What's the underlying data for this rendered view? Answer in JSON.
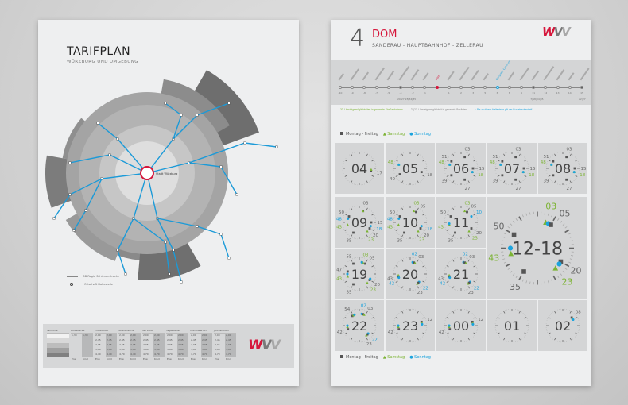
{
  "left_poster": {
    "title": "TARIFPLAN",
    "subtitle": "WÜRZBURG UND UMGEBUNG",
    "center_station": "Stadt Würzburg",
    "legend": [
      {
        "icon": "rail-line",
        "label": "DB-Regio Schienenstrecke"
      },
      {
        "icon": "stop-circle",
        "label": "Ortschaft Haltestelle"
      }
    ],
    "table": {
      "headers": [
        "Tarifzone",
        "Kurzstrecke",
        "Einzelticket",
        "Streifenkarte",
        "der Karte",
        "Tageskarten",
        "Monatskarten",
        "Jahreskarten"
      ],
      "short_fare": "1,30",
      "fares": [
        "2,00",
        "2,45",
        "2,95",
        "3,90",
        "4,70"
      ],
      "footer": [
        "Erw.",
        "Kind"
      ]
    },
    "logo": "WVV"
  },
  "right_poster": {
    "line_number": "4",
    "line_name": "DOM",
    "route": "SANDERAU - HAUPTBAHNHOF - ZELLERAU",
    "logo": "WVV",
    "stops": [
      {
        "num": "-10"
      },
      {
        "num": "-9"
      },
      {
        "num": "-8"
      },
      {
        "num": "-7"
      },
      {
        "num": "-5"
      },
      {
        "num": "-4",
        "transfer": "20|27|28|34|35"
      },
      {
        "num": "-2"
      },
      {
        "num": "-1"
      },
      {
        "num": "",
        "name": "Dom",
        "current": true
      },
      {
        "num": "1"
      },
      {
        "num": "2"
      },
      {
        "num": "3"
      },
      {
        "num": "5"
      },
      {
        "num": "6",
        "name": "Congress Centrum",
        "short_limit": true
      },
      {
        "num": "8"
      },
      {
        "num": "9"
      },
      {
        "num": "11",
        "transfer": "7|18|34|35"
      },
      {
        "num": "12"
      },
      {
        "num": "13"
      },
      {
        "num": "14"
      },
      {
        "num": "15",
        "transfer": "22|27"
      }
    ],
    "info": [
      {
        "code": "20",
        "text": "Umsteigemöglichkeiten in genannte Straßenbahnen"
      },
      {
        "code": "22|27",
        "text": "Umsteigemöglichkeit in genannte Buslinien"
      },
      {
        "code": "",
        "text": "Bis zu dieser Haltestelle gilt der Kurzstreckentarif"
      }
    ],
    "day_legend": {
      "weekday": "Montag - Freitag",
      "saturday": "Samstag",
      "sunday": "Sonntag"
    },
    "colors": {
      "accent": "#d6163b",
      "weekday": "#555555",
      "saturday": "#7cb334",
      "sunday": "#1ba3dd"
    },
    "hours": [
      {
        "hour": "04",
        "marks": [
          {
            "m": "17",
            "d": "wd",
            "l": true
          },
          {
            "m": "16",
            "d": "sat"
          }
        ]
      },
      {
        "hour": "05",
        "marks": [
          {
            "m": "48",
            "d": "sat",
            "l": true
          },
          {
            "m": "48",
            "d": "sun"
          },
          {
            "m": "18",
            "d": "wd",
            "l": true
          },
          {
            "m": "40",
            "d": "wd",
            "l": true
          }
        ]
      },
      {
        "hour": "06",
        "marks": [
          {
            "m": "03",
            "d": "wd",
            "l": true
          },
          {
            "m": "51",
            "d": "wd",
            "l": true
          },
          {
            "m": "48",
            "d": "sat",
            "l": true
          },
          {
            "m": "48",
            "d": "sun"
          },
          {
            "m": "15",
            "d": "wd",
            "l": true
          },
          {
            "m": "18",
            "d": "sat",
            "l": true
          },
          {
            "m": "18",
            "d": "sun"
          },
          {
            "m": "39",
            "d": "wd",
            "l": true
          },
          {
            "m": "27",
            "d": "wd",
            "l": true
          }
        ]
      },
      {
        "hour": "07",
        "marks": [
          {
            "m": "03",
            "d": "wd",
            "l": true
          },
          {
            "m": "51",
            "d": "wd",
            "l": true
          },
          {
            "m": "48",
            "d": "sat",
            "l": true
          },
          {
            "m": "48",
            "d": "sun"
          },
          {
            "m": "15",
            "d": "wd",
            "l": true
          },
          {
            "m": "18",
            "d": "sat",
            "l": true
          },
          {
            "m": "18",
            "d": "sun"
          },
          {
            "m": "39",
            "d": "wd",
            "l": true
          },
          {
            "m": "27",
            "d": "wd",
            "l": true
          }
        ]
      },
      {
        "hour": "08",
        "marks": [
          {
            "m": "03",
            "d": "wd",
            "l": true
          },
          {
            "m": "51",
            "d": "wd",
            "l": true
          },
          {
            "m": "48",
            "d": "sat",
            "l": true
          },
          {
            "m": "48",
            "d": "sun"
          },
          {
            "m": "15",
            "d": "wd",
            "l": true
          },
          {
            "m": "18",
            "d": "sat",
            "l": true
          },
          {
            "m": "18",
            "d": "sun"
          },
          {
            "m": "39",
            "d": "wd",
            "l": true
          },
          {
            "m": "27",
            "d": "wd",
            "l": true
          }
        ]
      },
      {
        "hour": "09",
        "marks": [
          {
            "m": "03",
            "d": "wd",
            "l": true
          },
          {
            "m": "03",
            "d": "sat"
          },
          {
            "m": "50",
            "d": "wd",
            "l": true
          },
          {
            "m": "48",
            "d": "sun",
            "l": true
          },
          {
            "m": "43",
            "d": "sat",
            "l": true
          },
          {
            "m": "15",
            "d": "wd",
            "l": true
          },
          {
            "m": "18",
            "d": "sun",
            "l": true
          },
          {
            "m": "20",
            "d": "wd",
            "l": true
          },
          {
            "m": "23",
            "d": "sat",
            "l": true
          },
          {
            "m": "35",
            "d": "wd",
            "l": true
          }
        ]
      },
      {
        "hour": "10",
        "marks": [
          {
            "m": "03",
            "d": "sat",
            "l": true
          },
          {
            "m": "05",
            "d": "wd",
            "l": true
          },
          {
            "m": "50",
            "d": "wd",
            "l": true
          },
          {
            "m": "48",
            "d": "sun",
            "l": true
          },
          {
            "m": "43",
            "d": "sat",
            "l": true
          },
          {
            "m": "18",
            "d": "sun",
            "l": true
          },
          {
            "m": "20",
            "d": "wd",
            "l": true
          },
          {
            "m": "23",
            "d": "sat",
            "l": true
          },
          {
            "m": "35",
            "d": "wd",
            "l": true
          }
        ]
      },
      {
        "hour": "11",
        "marks": [
          {
            "m": "03",
            "d": "sat",
            "l": true
          },
          {
            "m": "05",
            "d": "wd",
            "l": true
          },
          {
            "m": "50",
            "d": "wd",
            "l": true
          },
          {
            "m": "10",
            "d": "sun",
            "l": true
          },
          {
            "m": "43",
            "d": "sat",
            "l": true
          },
          {
            "m": "44",
            "d": "sun"
          },
          {
            "m": "20",
            "d": "wd",
            "l": true
          },
          {
            "m": "23",
            "d": "sat",
            "l": true
          },
          {
            "m": "35",
            "d": "wd",
            "l": true
          }
        ]
      },
      {
        "hour": "12-18",
        "big": true,
        "marks": [
          {
            "m": "03",
            "d": "sat",
            "l": true
          },
          {
            "m": "04",
            "d": "sun"
          },
          {
            "m": "05",
            "d": "wd",
            "l": true
          },
          {
            "m": "50",
            "d": "wd",
            "l": true
          },
          {
            "m": "43",
            "d": "sat",
            "l": true
          },
          {
            "m": "45",
            "d": "sun"
          },
          {
            "m": "20",
            "d": "wd",
            "l": true
          },
          {
            "m": "23",
            "d": "sat",
            "l": true
          },
          {
            "m": "21",
            "d": "sun"
          },
          {
            "m": "35",
            "d": "wd",
            "l": true
          }
        ]
      },
      {
        "hour": "19",
        "marks": [
          {
            "m": "55",
            "d": "wd",
            "l": true
          },
          {
            "m": "03",
            "d": "sat",
            "l": true
          },
          {
            "m": "05",
            "d": "wd",
            "l": true
          },
          {
            "m": "02",
            "d": "sun"
          },
          {
            "m": "47",
            "d": "wd",
            "l": true
          },
          {
            "m": "43",
            "d": "sat",
            "l": true
          },
          {
            "m": "45",
            "d": "sun"
          },
          {
            "m": "20",
            "d": "wd",
            "l": true
          },
          {
            "m": "19",
            "d": "sun"
          },
          {
            "m": "23",
            "d": "sat",
            "l": true
          },
          {
            "m": "35",
            "d": "wd",
            "l": true
          }
        ]
      },
      {
        "hour": "20",
        "marks": [
          {
            "m": "02",
            "d": "sun",
            "l": true
          },
          {
            "m": "03",
            "d": "wd",
            "l": true
          },
          {
            "m": "04",
            "d": "sat"
          },
          {
            "m": "43",
            "d": "wd",
            "l": true
          },
          {
            "m": "44",
            "d": "sat"
          },
          {
            "m": "42",
            "d": "sun",
            "l": true
          },
          {
            "m": "22",
            "d": "sun",
            "l": true
          },
          {
            "m": "23",
            "d": "wd",
            "l": true
          },
          {
            "m": "24",
            "d": "sat"
          }
        ]
      },
      {
        "hour": "21",
        "marks": [
          {
            "m": "02",
            "d": "sun",
            "l": true
          },
          {
            "m": "03",
            "d": "wd",
            "l": true
          },
          {
            "m": "04",
            "d": "sat"
          },
          {
            "m": "43",
            "d": "wd",
            "l": true
          },
          {
            "m": "44",
            "d": "sat"
          },
          {
            "m": "42",
            "d": "sun",
            "l": true
          },
          {
            "m": "22",
            "d": "sun",
            "l": true
          },
          {
            "m": "23",
            "d": "wd",
            "l": true
          },
          {
            "m": "24",
            "d": "sat"
          }
        ]
      },
      {
        "hour": "22",
        "marks": [
          {
            "m": "54",
            "d": "wd",
            "l": true
          },
          {
            "m": "55",
            "d": "sat"
          },
          {
            "m": "56",
            "d": "sun"
          },
          {
            "m": "02",
            "d": "sun",
            "l": true
          },
          {
            "m": "03",
            "d": "wd",
            "l": true
          },
          {
            "m": "04",
            "d": "sat"
          },
          {
            "m": "42",
            "d": "wd",
            "l": true
          },
          {
            "m": "44",
            "d": "sat"
          },
          {
            "m": "45",
            "d": "sun"
          },
          {
            "m": "22",
            "d": "sun",
            "l": true
          },
          {
            "m": "23",
            "d": "wd",
            "l": true
          },
          {
            "m": "24",
            "d": "sat"
          }
        ]
      },
      {
        "hour": "23",
        "marks": [
          {
            "m": "42",
            "d": "wd",
            "l": true
          },
          {
            "m": "44",
            "d": "sat"
          },
          {
            "m": "45",
            "d": "sun"
          },
          {
            "m": "12",
            "d": "wd",
            "l": true
          },
          {
            "m": "13",
            "d": "sat"
          },
          {
            "m": "14",
            "d": "sun"
          }
        ]
      },
      {
        "hour": "00",
        "marks": [
          {
            "m": "42",
            "d": "wd",
            "l": true
          },
          {
            "m": "44",
            "d": "sat"
          },
          {
            "m": "45",
            "d": "sun"
          },
          {
            "m": "12",
            "d": "wd",
            "l": true
          },
          {
            "m": "13",
            "d": "sat"
          },
          {
            "m": "14",
            "d": "sun"
          }
        ]
      },
      {
        "hour": "01",
        "marks": []
      },
      {
        "hour": "02",
        "marks": [
          {
            "m": "08",
            "d": "wd",
            "l": true
          },
          {
            "m": "09",
            "d": "sat"
          },
          {
            "m": "10",
            "d": "sun"
          }
        ]
      }
    ]
  }
}
